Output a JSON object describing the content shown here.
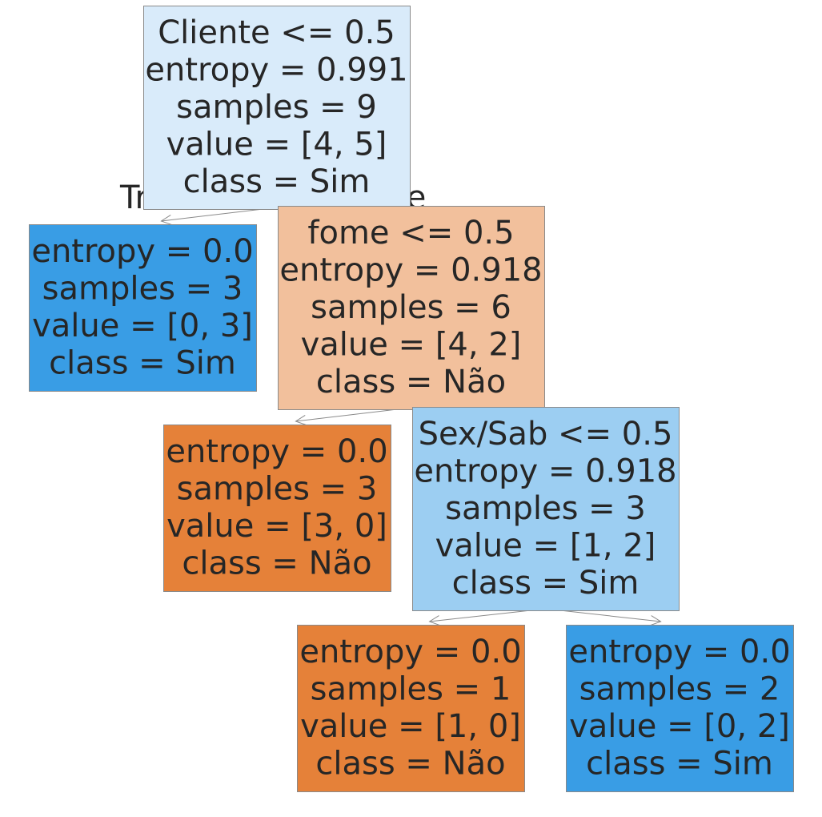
{
  "tree": {
    "edge_labels": {
      "true_label": "True",
      "false_label": "False"
    },
    "nodes": [
      {
        "id": "root",
        "fill": "#d9ebfa",
        "lines": [
          "Cliente <= 0.5",
          "entropy = 0.991",
          "samples = 9",
          "value = [4, 5]",
          "class = Sim"
        ]
      },
      {
        "id": "leaf-1",
        "fill": "#399de5",
        "lines": [
          "entropy = 0.0",
          "samples = 3",
          "value = [0, 3]",
          "class = Sim"
        ]
      },
      {
        "id": "node-fome",
        "fill": "#f2c09c",
        "lines": [
          "fome <= 0.5",
          "entropy = 0.918",
          "samples = 6",
          "value = [4, 2]",
          "class = Não"
        ]
      },
      {
        "id": "leaf-2",
        "fill": "#e58139",
        "lines": [
          "entropy = 0.0",
          "samples = 3",
          "value = [3, 0]",
          "class = Não"
        ]
      },
      {
        "id": "node-sexsab",
        "fill": "#9ccef2",
        "lines": [
          "Sex/Sab <= 0.5",
          "entropy = 0.918",
          "samples = 3",
          "value = [1, 2]",
          "class = Sim"
        ]
      },
      {
        "id": "leaf-3",
        "fill": "#e58139",
        "lines": [
          "entropy = 0.0",
          "samples = 1",
          "value = [1, 0]",
          "class = Não"
        ]
      },
      {
        "id": "leaf-4",
        "fill": "#399de5",
        "lines": [
          "entropy = 0.0",
          "samples = 2",
          "value = [0, 2]",
          "class = Sim"
        ]
      }
    ],
    "edges": [
      {
        "from": "root",
        "to": "leaf-1"
      },
      {
        "from": "root",
        "to": "node-fome"
      },
      {
        "from": "node-fome",
        "to": "leaf-2"
      },
      {
        "from": "node-fome",
        "to": "node-sexsab"
      },
      {
        "from": "node-sexsab",
        "to": "leaf-3"
      },
      {
        "from": "node-sexsab",
        "to": "leaf-4"
      }
    ]
  }
}
